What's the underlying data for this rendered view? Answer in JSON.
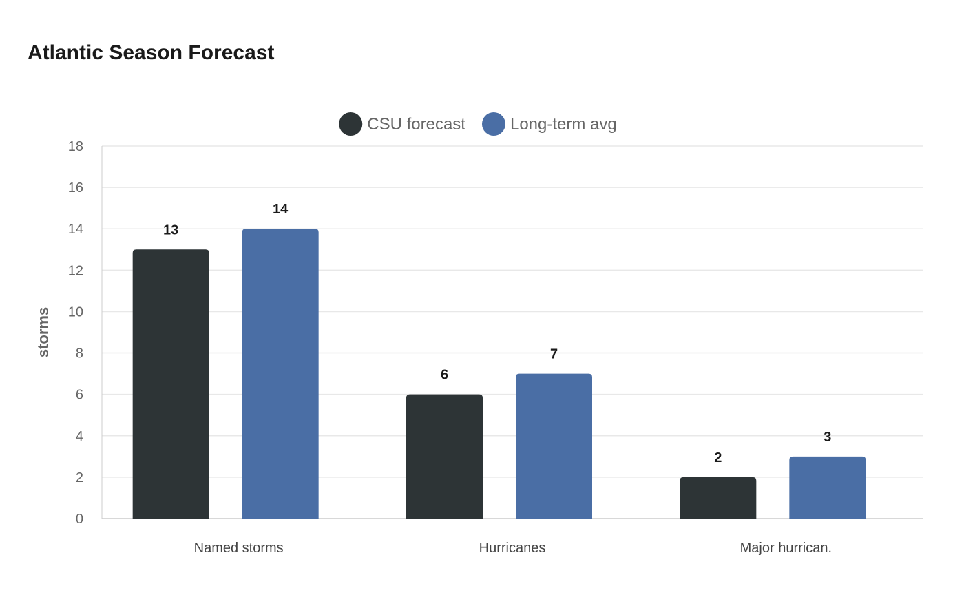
{
  "chart_data": {
    "type": "bar",
    "title": "Atlantic Season Forecast",
    "xlabel": "",
    "ylabel": "storms",
    "categories": [
      "Named storms",
      "Hurricanes",
      "Major hurrican."
    ],
    "series": [
      {
        "name": "CSU forecast",
        "values": [
          13,
          6,
          2
        ],
        "color": "#2d3436"
      },
      {
        "name": "Long-term avg",
        "values": [
          14,
          7,
          3
        ],
        "color": "#4a6ea5"
      }
    ],
    "ylim": [
      0,
      18
    ],
    "yticks": [
      0,
      2,
      4,
      6,
      8,
      10,
      12,
      14,
      16,
      18
    ],
    "grid": true,
    "legend_position": "top-center"
  }
}
